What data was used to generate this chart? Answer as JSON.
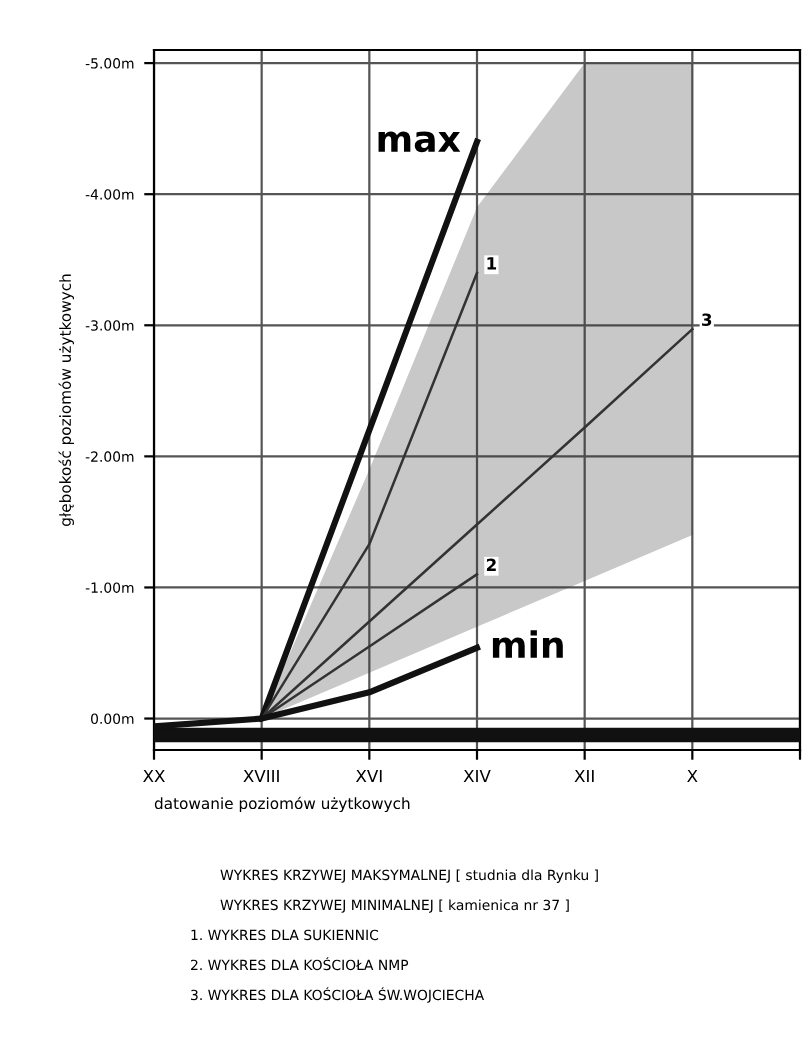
{
  "chart_data": {
    "type": "line",
    "xlabel": "datowanie poziomów użytkowych",
    "ylabel": "głębokość poziomów użytkowych",
    "categories": [
      "XX",
      "XVIII",
      "XVI",
      "XIV",
      "XII",
      "X",
      null
    ],
    "ylim": [
      0.24,
      -5.1
    ],
    "yticks": [
      {
        "value": 0,
        "label": "0.00m"
      },
      {
        "value": -1,
        "label": "-1.00m"
      },
      {
        "value": -2,
        "label": "-2.00m"
      },
      {
        "value": -3,
        "label": "-3.00m"
      },
      {
        "value": -4,
        "label": "-4.00m"
      },
      {
        "value": -5,
        "label": "-5.00m"
      }
    ],
    "grid": true,
    "series": [
      {
        "name": "max",
        "color": "#111111",
        "values": [
          0.06,
          0,
          -2.2,
          -4.4,
          null,
          null,
          null
        ]
      },
      {
        "name": "1",
        "color": "#333333",
        "values": [
          null,
          0,
          -1.33,
          -3.4,
          null,
          null,
          null
        ]
      },
      {
        "name": "2",
        "color": "#333333",
        "values": [
          null,
          0,
          -0.55,
          -1.1,
          null,
          null,
          null
        ]
      },
      {
        "name": "3",
        "color": "#333333",
        "values": [
          null,
          0,
          -0.74,
          -1.48,
          -2.22,
          -2.97,
          null
        ],
        "upper": [
          null,
          0,
          -1.9,
          -3.9,
          -5.0,
          -5.0,
          null
        ],
        "lower": [
          null,
          0,
          -0.35,
          -0.7,
          -1.05,
          -1.4,
          null
        ]
      },
      {
        "name": "min",
        "color": "#111111",
        "values": [
          null,
          0,
          -0.2,
          -0.54,
          null,
          null,
          null
        ]
      }
    ],
    "bands": [
      {
        "axis": "y",
        "from": 0.08,
        "to": 0.17,
        "color": "#111111"
      }
    ],
    "annotations": [
      "WYKRES KRZYWEJ MAKSYMALNEJ [ studnia dla Rynku ]",
      "WYKRES KRZYWEJ MINIMALNEJ [ kamienica nr 37 ]",
      "1. WYKRES DLA SUKIENNIC",
      "2. WYKRES DLA KOŚCIOŁA NMP",
      "3. WYKRES DLA KOŚCIOŁA ŚW.WOJCIECHA"
    ]
  }
}
